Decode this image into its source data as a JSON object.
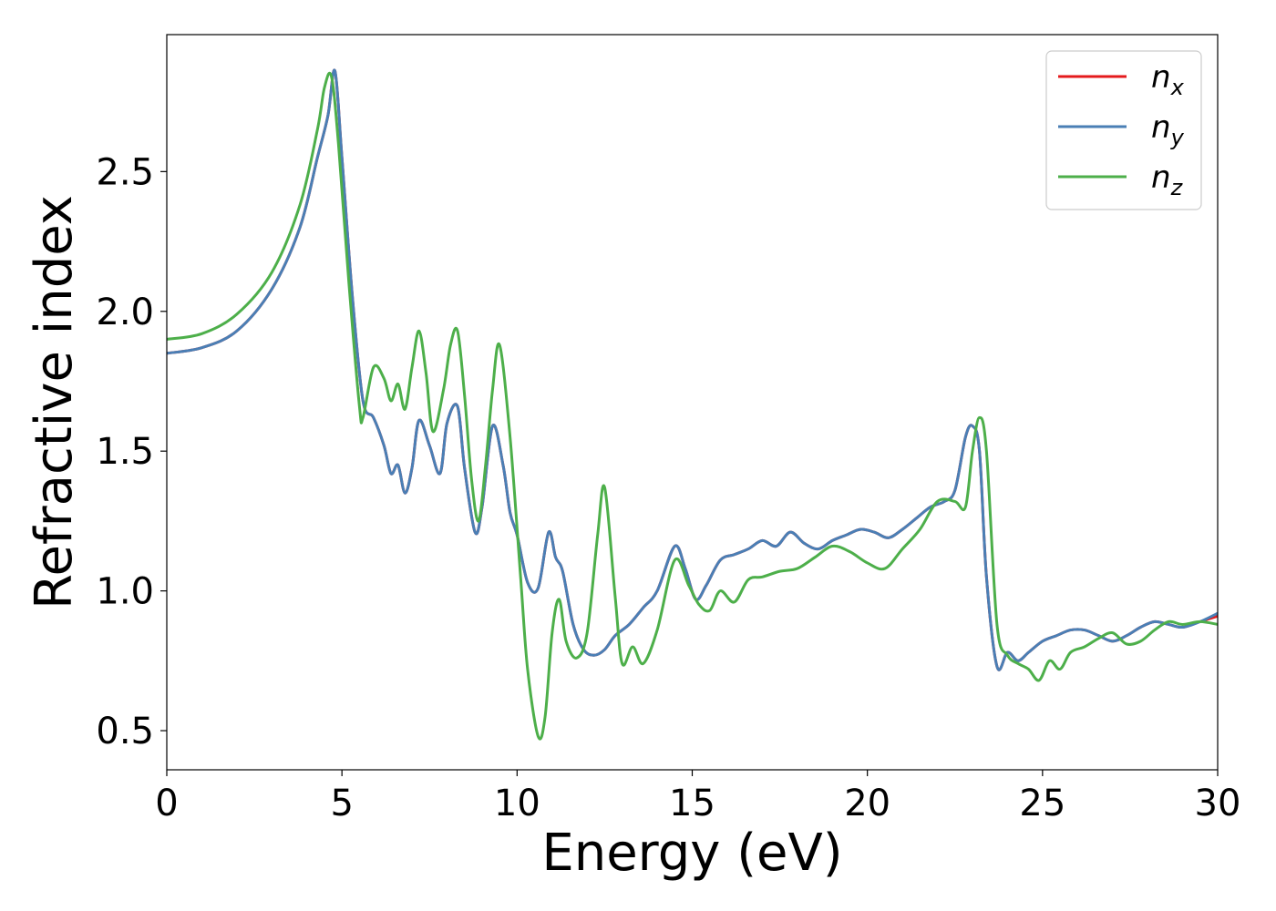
{
  "chart_data": {
    "type": "line",
    "title": "",
    "xlabel": "Energy (eV)",
    "ylabel": "Refractive index",
    "xlim": [
      0,
      30
    ],
    "ylim": [
      0.36,
      2.99
    ],
    "xticks": [
      0,
      5,
      10,
      15,
      20,
      25,
      30
    ],
    "xtick_labels": [
      "0",
      "5",
      "10",
      "15",
      "20",
      "25",
      "30"
    ],
    "yticks": [
      0.5,
      1.0,
      1.5,
      2.0,
      2.5
    ],
    "ytick_labels": [
      "0.5",
      "1.0",
      "1.5",
      "2.0",
      "2.5"
    ],
    "grid": false,
    "legend_position": "top-right",
    "series": [
      {
        "name": "n_x",
        "label_base": "n",
        "label_sub": "x",
        "color": "#e41a1c",
        "x": [
          0,
          1,
          2,
          3,
          3.8,
          4.3,
          4.6,
          4.8,
          5.0,
          5.3,
          5.6,
          5.9,
          6.2,
          6.4,
          6.6,
          6.8,
          7.0,
          7.2,
          7.5,
          7.8,
          8.0,
          8.3,
          8.5,
          8.8,
          9.0,
          9.3,
          9.6,
          9.8,
          10.0,
          10.3,
          10.6,
          10.9,
          11.1,
          11.3,
          11.6,
          11.9,
          12.2,
          12.5,
          12.8,
          13.2,
          13.6,
          14.0,
          14.5,
          14.8,
          15.1,
          15.4,
          15.8,
          16.2,
          16.6,
          17.0,
          17.4,
          17.8,
          18.2,
          18.6,
          19.0,
          19.4,
          19.8,
          20.2,
          20.6,
          21.0,
          21.4,
          21.8,
          22.2,
          22.5,
          22.8,
          23.0,
          23.2,
          23.4,
          23.7,
          24.0,
          24.3,
          24.6,
          25.0,
          25.4,
          25.8,
          26.2,
          26.6,
          27.0,
          27.4,
          27.8,
          28.2,
          28.6,
          29.0,
          29.5,
          30.0
        ],
        "y": [
          1.85,
          1.87,
          1.93,
          2.08,
          2.3,
          2.55,
          2.7,
          2.86,
          2.55,
          2.05,
          1.68,
          1.62,
          1.52,
          1.42,
          1.45,
          1.35,
          1.44,
          1.61,
          1.52,
          1.42,
          1.6,
          1.66,
          1.44,
          1.21,
          1.3,
          1.59,
          1.45,
          1.28,
          1.2,
          1.03,
          1.01,
          1.21,
          1.12,
          1.07,
          0.88,
          0.79,
          0.77,
          0.79,
          0.84,
          0.88,
          0.94,
          1.0,
          1.16,
          1.08,
          0.97,
          1.02,
          1.11,
          1.13,
          1.15,
          1.18,
          1.16,
          1.21,
          1.17,
          1.15,
          1.18,
          1.2,
          1.22,
          1.21,
          1.19,
          1.22,
          1.26,
          1.3,
          1.32,
          1.36,
          1.55,
          1.59,
          1.5,
          1.05,
          0.73,
          0.78,
          0.75,
          0.78,
          0.82,
          0.84,
          0.86,
          0.86,
          0.84,
          0.82,
          0.84,
          0.87,
          0.89,
          0.88,
          0.87,
          0.89,
          0.91
        ]
      },
      {
        "name": "n_y",
        "label_base": "n",
        "label_sub": "y",
        "color": "#4a7fb5",
        "x": [
          0,
          1,
          2,
          3,
          3.8,
          4.3,
          4.6,
          4.8,
          5.0,
          5.3,
          5.6,
          5.9,
          6.2,
          6.4,
          6.6,
          6.8,
          7.0,
          7.2,
          7.5,
          7.8,
          8.0,
          8.3,
          8.5,
          8.8,
          9.0,
          9.3,
          9.6,
          9.8,
          10.0,
          10.3,
          10.6,
          10.9,
          11.1,
          11.3,
          11.6,
          11.9,
          12.2,
          12.5,
          12.8,
          13.2,
          13.6,
          14.0,
          14.5,
          14.8,
          15.1,
          15.4,
          15.8,
          16.2,
          16.6,
          17.0,
          17.4,
          17.8,
          18.2,
          18.6,
          19.0,
          19.4,
          19.8,
          20.2,
          20.6,
          21.0,
          21.4,
          21.8,
          22.2,
          22.5,
          22.8,
          23.0,
          23.2,
          23.4,
          23.7,
          24.0,
          24.3,
          24.6,
          25.0,
          25.4,
          25.8,
          26.2,
          26.6,
          27.0,
          27.4,
          27.8,
          28.2,
          28.6,
          29.0,
          29.5,
          30.0
        ],
        "y": [
          1.85,
          1.87,
          1.93,
          2.08,
          2.3,
          2.55,
          2.7,
          2.86,
          2.55,
          2.05,
          1.68,
          1.62,
          1.52,
          1.42,
          1.45,
          1.35,
          1.44,
          1.61,
          1.52,
          1.42,
          1.6,
          1.66,
          1.44,
          1.21,
          1.3,
          1.59,
          1.45,
          1.28,
          1.2,
          1.03,
          1.01,
          1.21,
          1.12,
          1.07,
          0.88,
          0.79,
          0.77,
          0.79,
          0.84,
          0.88,
          0.94,
          1.0,
          1.16,
          1.08,
          0.97,
          1.02,
          1.11,
          1.13,
          1.15,
          1.18,
          1.16,
          1.21,
          1.17,
          1.15,
          1.18,
          1.2,
          1.22,
          1.21,
          1.19,
          1.22,
          1.26,
          1.3,
          1.32,
          1.36,
          1.55,
          1.59,
          1.5,
          1.05,
          0.73,
          0.78,
          0.75,
          0.78,
          0.82,
          0.84,
          0.86,
          0.86,
          0.84,
          0.82,
          0.84,
          0.87,
          0.89,
          0.88,
          0.87,
          0.89,
          0.92
        ]
      },
      {
        "name": "n_z",
        "label_base": "n",
        "label_sub": "z",
        "color": "#4daf4a",
        "x": [
          0,
          1,
          2,
          3,
          3.8,
          4.3,
          4.5,
          4.7,
          4.9,
          5.2,
          5.5,
          5.6,
          5.9,
          6.2,
          6.4,
          6.6,
          6.8,
          7.0,
          7.2,
          7.4,
          7.6,
          7.9,
          8.1,
          8.3,
          8.5,
          8.7,
          8.9,
          9.1,
          9.3,
          9.5,
          9.8,
          10.1,
          10.3,
          10.6,
          10.8,
          11.0,
          11.2,
          11.4,
          11.7,
          12.0,
          12.3,
          12.5,
          12.8,
          13.0,
          13.3,
          13.6,
          14.0,
          14.5,
          14.9,
          15.2,
          15.5,
          15.8,
          16.2,
          16.6,
          17.0,
          17.5,
          18.0,
          18.5,
          19.0,
          19.5,
          20.0,
          20.5,
          21.0,
          21.5,
          22.0,
          22.5,
          22.8,
          23.0,
          23.2,
          23.4,
          23.7,
          24.0,
          24.3,
          24.6,
          24.9,
          25.2,
          25.5,
          25.8,
          26.2,
          26.6,
          27.0,
          27.4,
          27.8,
          28.2,
          28.6,
          29.0,
          29.5,
          30.0
        ],
        "y": [
          1.9,
          1.92,
          1.99,
          2.14,
          2.38,
          2.65,
          2.8,
          2.84,
          2.6,
          2.1,
          1.66,
          1.62,
          1.8,
          1.76,
          1.68,
          1.74,
          1.65,
          1.8,
          1.93,
          1.78,
          1.57,
          1.72,
          1.88,
          1.93,
          1.7,
          1.4,
          1.25,
          1.45,
          1.72,
          1.88,
          1.55,
          1.05,
          0.72,
          0.48,
          0.55,
          0.85,
          0.97,
          0.82,
          0.76,
          0.85,
          1.2,
          1.37,
          0.98,
          0.74,
          0.8,
          0.74,
          0.86,
          1.11,
          1.02,
          0.95,
          0.93,
          1.0,
          0.96,
          1.04,
          1.05,
          1.07,
          1.08,
          1.12,
          1.16,
          1.14,
          1.1,
          1.08,
          1.15,
          1.22,
          1.32,
          1.32,
          1.3,
          1.5,
          1.62,
          1.5,
          0.88,
          0.77,
          0.74,
          0.72,
          0.68,
          0.75,
          0.72,
          0.78,
          0.8,
          0.83,
          0.85,
          0.81,
          0.82,
          0.86,
          0.89,
          0.88,
          0.89,
          0.88
        ]
      }
    ]
  }
}
